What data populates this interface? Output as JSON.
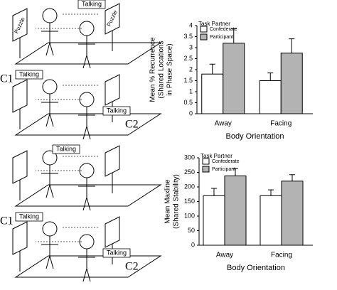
{
  "diagram": {
    "panels": [
      {
        "labels": [
          "Talking",
          "Puzzle",
          "Puzzle"
        ]
      },
      {
        "labels": [
          "C1",
          "Talking",
          "Talking",
          "C2"
        ]
      },
      {
        "labels": [
          "Talking"
        ]
      },
      {
        "labels": [
          "C1",
          "Talking",
          "Talking",
          "C2"
        ]
      }
    ]
  },
  "chart_data": [
    {
      "type": "bar",
      "ylabel": [
        "Mean % Recurrence",
        "(Shared Locations",
        "in Phase Space)"
      ],
      "xlabel": "Body Orientation",
      "legend_title": "Task Partner",
      "legend": "top-left",
      "categories": [
        "Away",
        "Facing"
      ],
      "series": [
        {
          "name": "Confederate",
          "color": "#ffffff",
          "values": [
            1.8,
            1.5
          ],
          "errors": [
            0.45,
            0.35
          ]
        },
        {
          "name": "Participant",
          "color": "#b3b3b3",
          "values": [
            3.2,
            2.75
          ],
          "errors": [
            0.65,
            0.65
          ]
        }
      ],
      "ylim": [
        0,
        4
      ],
      "yticks": [
        0,
        0.5,
        1,
        1.5,
        2,
        2.5,
        3,
        3.5,
        4
      ]
    },
    {
      "type": "bar",
      "ylabel": [
        "Mean Maxline",
        "(Shared Stability)"
      ],
      "xlabel": "Body Orientation",
      "legend_title": "Task Partner",
      "legend": "top-left",
      "categories": [
        "Away",
        "Facing"
      ],
      "series": [
        {
          "name": "Confederate",
          "color": "#ffffff",
          "values": [
            170,
            170
          ],
          "errors": [
            25,
            20
          ]
        },
        {
          "name": "Participant",
          "color": "#b3b3b3",
          "values": [
            238,
            220
          ],
          "errors": [
            25,
            22
          ]
        }
      ],
      "ylim": [
        0,
        300
      ],
      "yticks": [
        0,
        50,
        100,
        150,
        200,
        250,
        300
      ]
    }
  ]
}
